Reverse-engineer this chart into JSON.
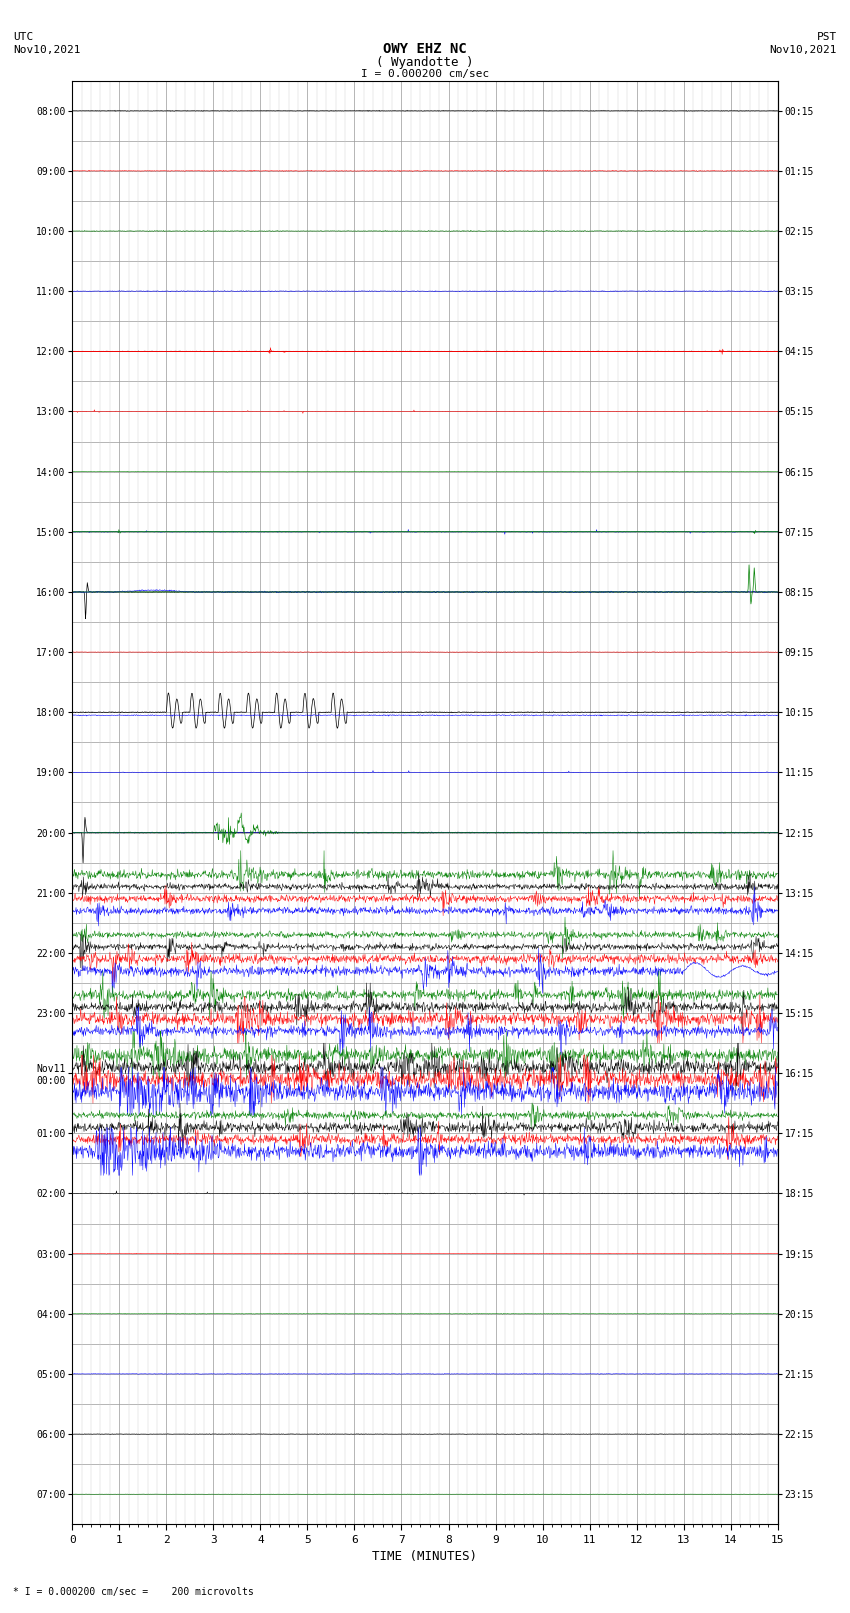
{
  "title_line1": "OWY EHZ NC",
  "title_line2": "( Wyandotte )",
  "scale_text": "I = 0.000200 cm/sec",
  "bottom_text": "* I = 0.000200 cm/sec =    200 microvolts",
  "xlabel": "TIME (MINUTES)",
  "x_ticks": [
    0,
    1,
    2,
    3,
    4,
    5,
    6,
    7,
    8,
    9,
    10,
    11,
    12,
    13,
    14,
    15
  ],
  "num_rows": 24,
  "bg_color": "#ffffff",
  "colors": [
    "#000000",
    "#ff0000",
    "#008000",
    "#0000ff"
  ],
  "grid_color": "#999999",
  "utc_times": [
    "08:00",
    "09:00",
    "10:00",
    "11:00",
    "12:00",
    "13:00",
    "14:00",
    "15:00",
    "16:00",
    "17:00",
    "18:00",
    "19:00",
    "20:00",
    "21:00",
    "22:00",
    "23:00",
    "Nov11\n00:00",
    "01:00",
    "02:00",
    "03:00",
    "04:00",
    "05:00",
    "06:00",
    "07:00"
  ],
  "pst_times": [
    "00:15",
    "01:15",
    "02:15",
    "03:15",
    "04:15",
    "05:15",
    "06:15",
    "07:15",
    "08:15",
    "09:15",
    "10:15",
    "11:15",
    "12:15",
    "13:15",
    "14:15",
    "15:15",
    "16:15",
    "17:15",
    "18:15",
    "19:15",
    "20:15",
    "21:15",
    "22:15",
    "23:15"
  ],
  "fig_width": 8.5,
  "fig_height": 16.13,
  "dpi": 100
}
